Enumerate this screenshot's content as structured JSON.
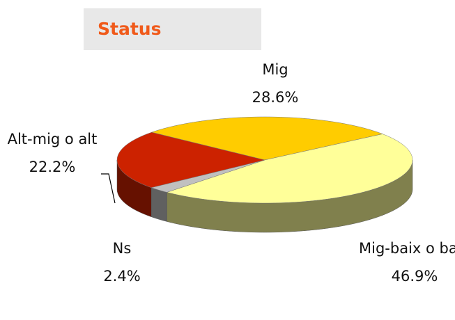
{
  "chart_data": {
    "type": "pie",
    "title": "Status",
    "categories": [
      "Mig",
      "Mig-baix o baix",
      "Ns",
      "Alt-mig o alt"
    ],
    "values": [
      28.6,
      46.9,
      2.4,
      22.2
    ],
    "value_labels": [
      "28.6%",
      "46.9%",
      "2.4%",
      "22.2%"
    ],
    "colors": [
      "#ffcc00",
      "#ffff99",
      "#c0c0c0",
      "#cc2200"
    ]
  }
}
